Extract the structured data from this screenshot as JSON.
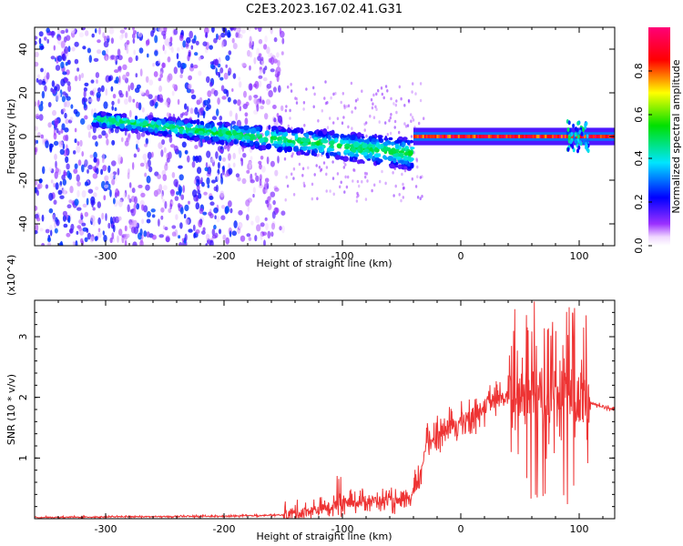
{
  "title": "C2E3.2023.167.02.41.G31",
  "colors": {
    "axes": "#000000",
    "snr_line": "#ee3333",
    "background": "#ffffff"
  },
  "chart_data": [
    {
      "type": "heatmap",
      "name": "spectrogram",
      "xlabel": "Height of straight line (km)",
      "ylabel": "Frequency (Hz)",
      "xlim": [
        -360,
        130
      ],
      "ylim": [
        -50,
        50
      ],
      "x_ticks": [
        "-300",
        "-200",
        "-100",
        "0",
        "100"
      ],
      "x_tick_values": [
        -300,
        -200,
        -100,
        0,
        100
      ],
      "y_ticks": [
        "40",
        "20",
        "0",
        "-20",
        "-40"
      ],
      "y_tick_values": [
        40,
        20,
        0,
        -20,
        -40
      ],
      "colorbar": {
        "label": "Normalized spectral amplitude",
        "range": [
          0,
          1
        ],
        "ticks": [
          "0.0",
          "0.2",
          "0.4",
          "0.6",
          "0.8"
        ],
        "tick_values": [
          0,
          0.2,
          0.4,
          0.6,
          0.8
        ],
        "colormap": "rainbow (violet → blue → cyan → green → yellow → red → magenta)"
      },
      "features": {
        "noise_cloud": {
          "x_range": [
            -360,
            -150
          ],
          "freq_range": [
            -50,
            50
          ],
          "amplitude": "low (0.0–0.3)"
        },
        "descending_band": {
          "from": [
            -310,
            8
          ],
          "to": [
            -40,
            -8
          ],
          "amplitude": "0.2–0.5"
        },
        "steady_line": {
          "x_range": [
            -40,
            130
          ],
          "freq": 0,
          "amplitude": "0.8–1.0"
        }
      }
    },
    {
      "type": "line",
      "name": "snr",
      "xlabel": "Height of straight line (km)",
      "ylabel": "SNR (10 * v/v)",
      "scale_label": "(x10^4)",
      "xlim": [
        -360,
        130
      ],
      "ylim": [
        0,
        3.6
      ],
      "x_ticks": [
        "-300",
        "-200",
        "-100",
        "0",
        "100"
      ],
      "x_tick_values": [
        -300,
        -200,
        -100,
        0,
        100
      ],
      "y_ticks": [
        "1",
        "2",
        "3"
      ],
      "y_tick_values": [
        1,
        2,
        3
      ],
      "series": [
        {
          "x": [
            -360,
            -300,
            -200,
            -150,
            -120,
            -100,
            -80,
            -60,
            -45,
            -35,
            -30,
            -20,
            -10,
            0,
            10,
            20,
            30,
            40,
            50,
            60,
            70,
            80,
            90,
            100,
            105,
            110,
            120,
            130
          ],
          "y": [
            0.02,
            0.03,
            0.04,
            0.06,
            0.15,
            0.25,
            0.3,
            0.3,
            0.25,
            0.6,
            1.2,
            1.4,
            1.5,
            1.6,
            1.7,
            1.85,
            1.95,
            2.0,
            2.05,
            2.1,
            2.05,
            2.05,
            2.0,
            1.95,
            1.9,
            1.9,
            1.85,
            1.8
          ]
        }
      ]
    }
  ]
}
